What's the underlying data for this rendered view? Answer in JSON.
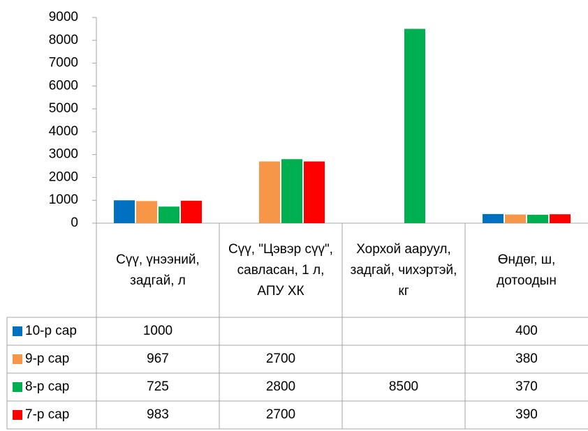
{
  "chart_data": {
    "type": "bar",
    "categories": [
      "Сүү, үнээний, задгай, л",
      "Сүү, \"Цэвэр сүү\", савласан, 1 л, АПУ ХК",
      "Хорхой ааруул, задгай, чихэртэй, кг",
      "Өндөг, ш, дотоодын"
    ],
    "series": [
      {
        "name": "10-р сар",
        "color": "#0070c0",
        "values": [
          1000,
          null,
          null,
          400
        ]
      },
      {
        "name": "9-р сар",
        "color": "#f79646",
        "values": [
          967,
          2700,
          null,
          380
        ]
      },
      {
        "name": "8-р сар",
        "color": "#00b050",
        "values": [
          725,
          2800,
          8500,
          370
        ]
      },
      {
        "name": "7-р сар",
        "color": "#ff0000",
        "values": [
          983,
          2700,
          null,
          390
        ]
      }
    ],
    "ylim": [
      0,
      9000
    ],
    "yticks": [
      0,
      1000,
      2000,
      3000,
      4000,
      5000,
      6000,
      7000,
      8000,
      9000
    ],
    "grid": false,
    "legend": "table"
  }
}
